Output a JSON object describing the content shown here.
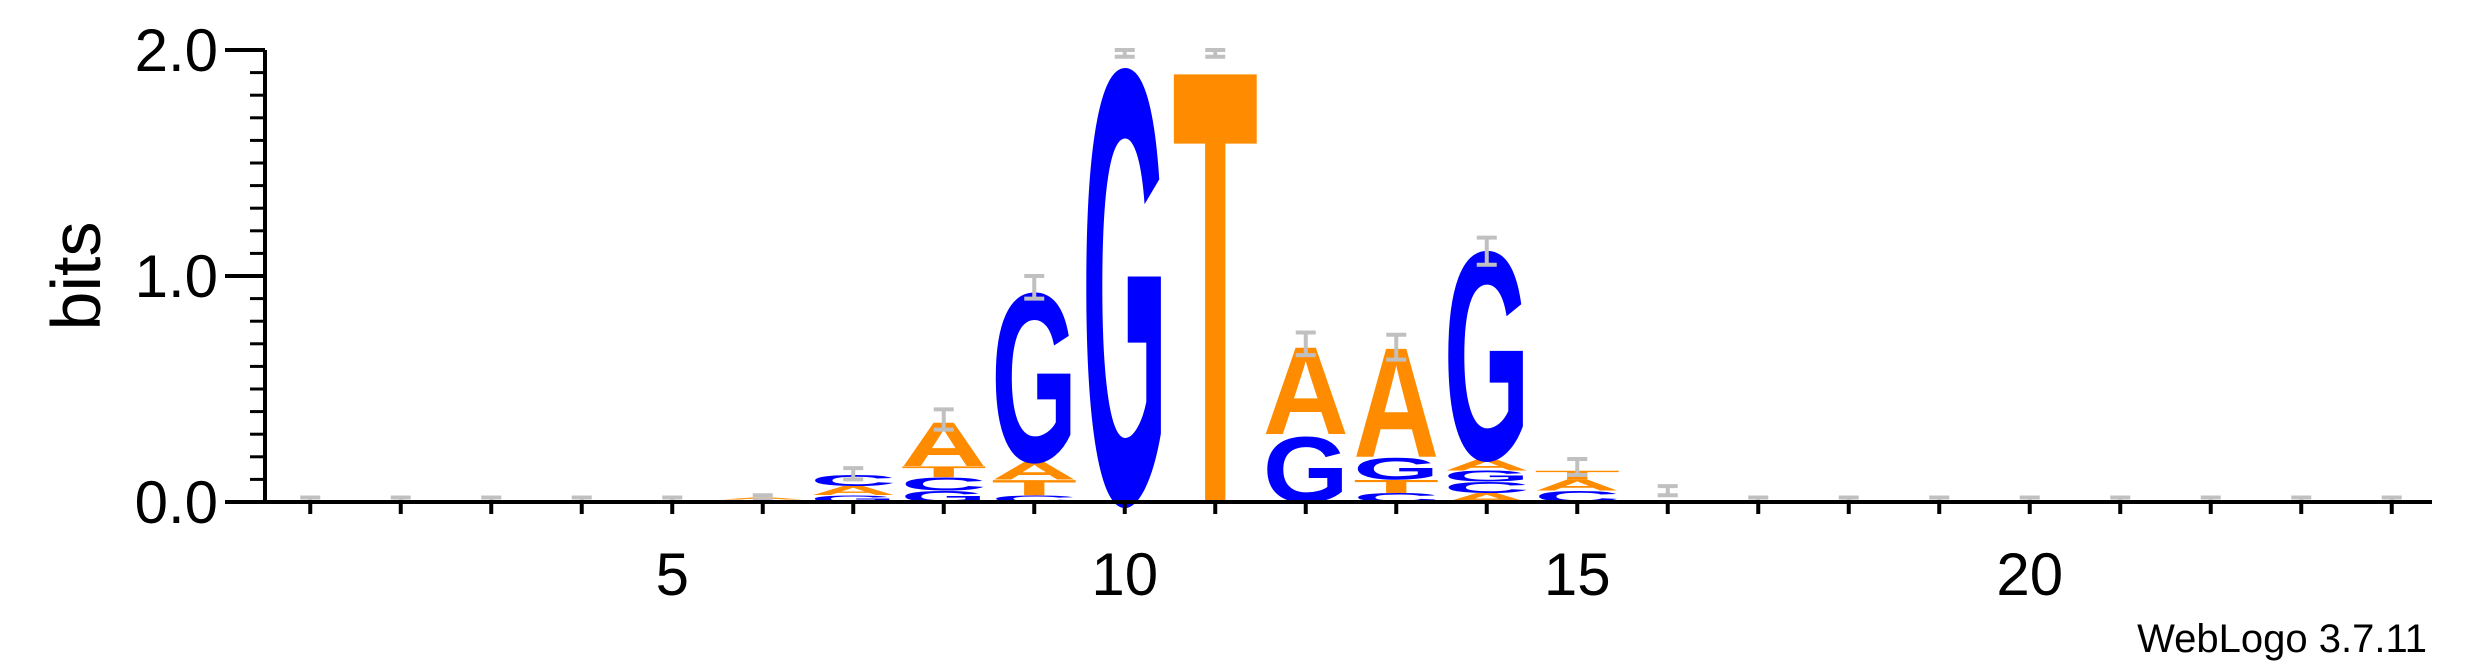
{
  "chart_data": {
    "type": "sequence-logo",
    "title": "",
    "xlabel": "",
    "ylabel": "bits",
    "ylim": [
      0,
      2.0
    ],
    "yticks": [
      {
        "value": 0.0,
        "label": "0.0"
      },
      {
        "value": 1.0,
        "label": "1.0"
      },
      {
        "value": 2.0,
        "label": "2.0"
      }
    ],
    "xlim": [
      1,
      24
    ],
    "xticks": [
      {
        "value": 5,
        "label": "5"
      },
      {
        "value": 10,
        "label": "10"
      },
      {
        "value": 15,
        "label": "15"
      },
      {
        "value": 20,
        "label": "20"
      }
    ],
    "colors": {
      "A": "#ff8c00",
      "T": "#ff8c00",
      "G": "#0000ff",
      "C": "#0000ff",
      "errorbar": "#c0c0c0"
    },
    "positions": [
      {
        "pos": 1,
        "letters": [],
        "error": [
          0.0,
          0.02
        ]
      },
      {
        "pos": 2,
        "letters": [],
        "error": [
          0.0,
          0.02
        ]
      },
      {
        "pos": 3,
        "letters": [],
        "error": [
          0.0,
          0.02
        ]
      },
      {
        "pos": 4,
        "letters": [],
        "error": [
          0.0,
          0.02
        ]
      },
      {
        "pos": 5,
        "letters": [],
        "error": [
          0.0,
          0.02
        ]
      },
      {
        "pos": 6,
        "letters": [
          {
            "l": "C",
            "h": 0.01
          },
          {
            "l": "A",
            "h": 0.01
          }
        ],
        "error": [
          0.01,
          0.03
        ]
      },
      {
        "pos": 7,
        "letters": [
          {
            "l": "G",
            "h": 0.03
          },
          {
            "l": "A",
            "h": 0.04
          },
          {
            "l": "C",
            "h": 0.05
          }
        ],
        "error": [
          0.1,
          0.15
        ]
      },
      {
        "pos": 8,
        "letters": [
          {
            "l": "G",
            "h": 0.05
          },
          {
            "l": "C",
            "h": 0.06
          },
          {
            "l": "T",
            "h": 0.05
          },
          {
            "l": "A",
            "h": 0.2
          }
        ],
        "error": [
          0.32,
          0.41
        ]
      },
      {
        "pos": 9,
        "letters": [
          {
            "l": "C",
            "h": 0.03
          },
          {
            "l": "T",
            "h": 0.07
          },
          {
            "l": "A",
            "h": 0.08
          },
          {
            "l": "G",
            "h": 0.77
          }
        ],
        "error": [
          0.9,
          1.0
        ]
      },
      {
        "pos": 10,
        "letters": [
          {
            "l": "G",
            "h": 1.98
          }
        ],
        "error": [
          1.97,
          2.0
        ]
      },
      {
        "pos": 11,
        "letters": [
          {
            "l": "T",
            "h": 1.98
          }
        ],
        "error": [
          1.97,
          2.0
        ]
      },
      {
        "pos": 12,
        "letters": [
          {
            "l": "G",
            "h": 0.3
          },
          {
            "l": "A",
            "h": 0.4
          }
        ],
        "error": [
          0.65,
          0.75
        ]
      },
      {
        "pos": 13,
        "letters": [
          {
            "l": "C",
            "h": 0.04
          },
          {
            "l": "T",
            "h": 0.06
          },
          {
            "l": "G",
            "h": 0.1
          },
          {
            "l": "A",
            "h": 0.5
          }
        ],
        "error": [
          0.63,
          0.74
        ]
      },
      {
        "pos": 14,
        "letters": [
          {
            "l": "A",
            "h": 0.04
          },
          {
            "l": "C",
            "h": 0.05
          },
          {
            "l": "G",
            "h": 0.05
          },
          {
            "l": "A",
            "h": 0.05
          },
          {
            "l": "G",
            "h": 0.95
          }
        ],
        "error": [
          1.05,
          1.17
        ]
      },
      {
        "pos": 15,
        "letters": [
          {
            "l": "C",
            "h": 0.05
          },
          {
            "l": "A",
            "h": 0.05
          },
          {
            "l": "T",
            "h": 0.04
          }
        ],
        "error": [
          0.12,
          0.19
        ]
      },
      {
        "pos": 16,
        "letters": [],
        "error": [
          0.03,
          0.07
        ]
      },
      {
        "pos": 17,
        "letters": [],
        "error": [
          0.0,
          0.02
        ]
      },
      {
        "pos": 18,
        "letters": [],
        "error": [
          0.0,
          0.02
        ]
      },
      {
        "pos": 19,
        "letters": [],
        "error": [
          0.0,
          0.02
        ]
      },
      {
        "pos": 20,
        "letters": [],
        "error": [
          0.0,
          0.02
        ]
      },
      {
        "pos": 21,
        "letters": [],
        "error": [
          0.0,
          0.02
        ]
      },
      {
        "pos": 22,
        "letters": [],
        "error": [
          0.0,
          0.02
        ]
      },
      {
        "pos": 23,
        "letters": [],
        "error": [
          0.0,
          0.02
        ]
      },
      {
        "pos": 24,
        "letters": [],
        "error": [
          0.0,
          0.02
        ]
      }
    ]
  },
  "footer": {
    "text": "WebLogo 3.7.11"
  }
}
